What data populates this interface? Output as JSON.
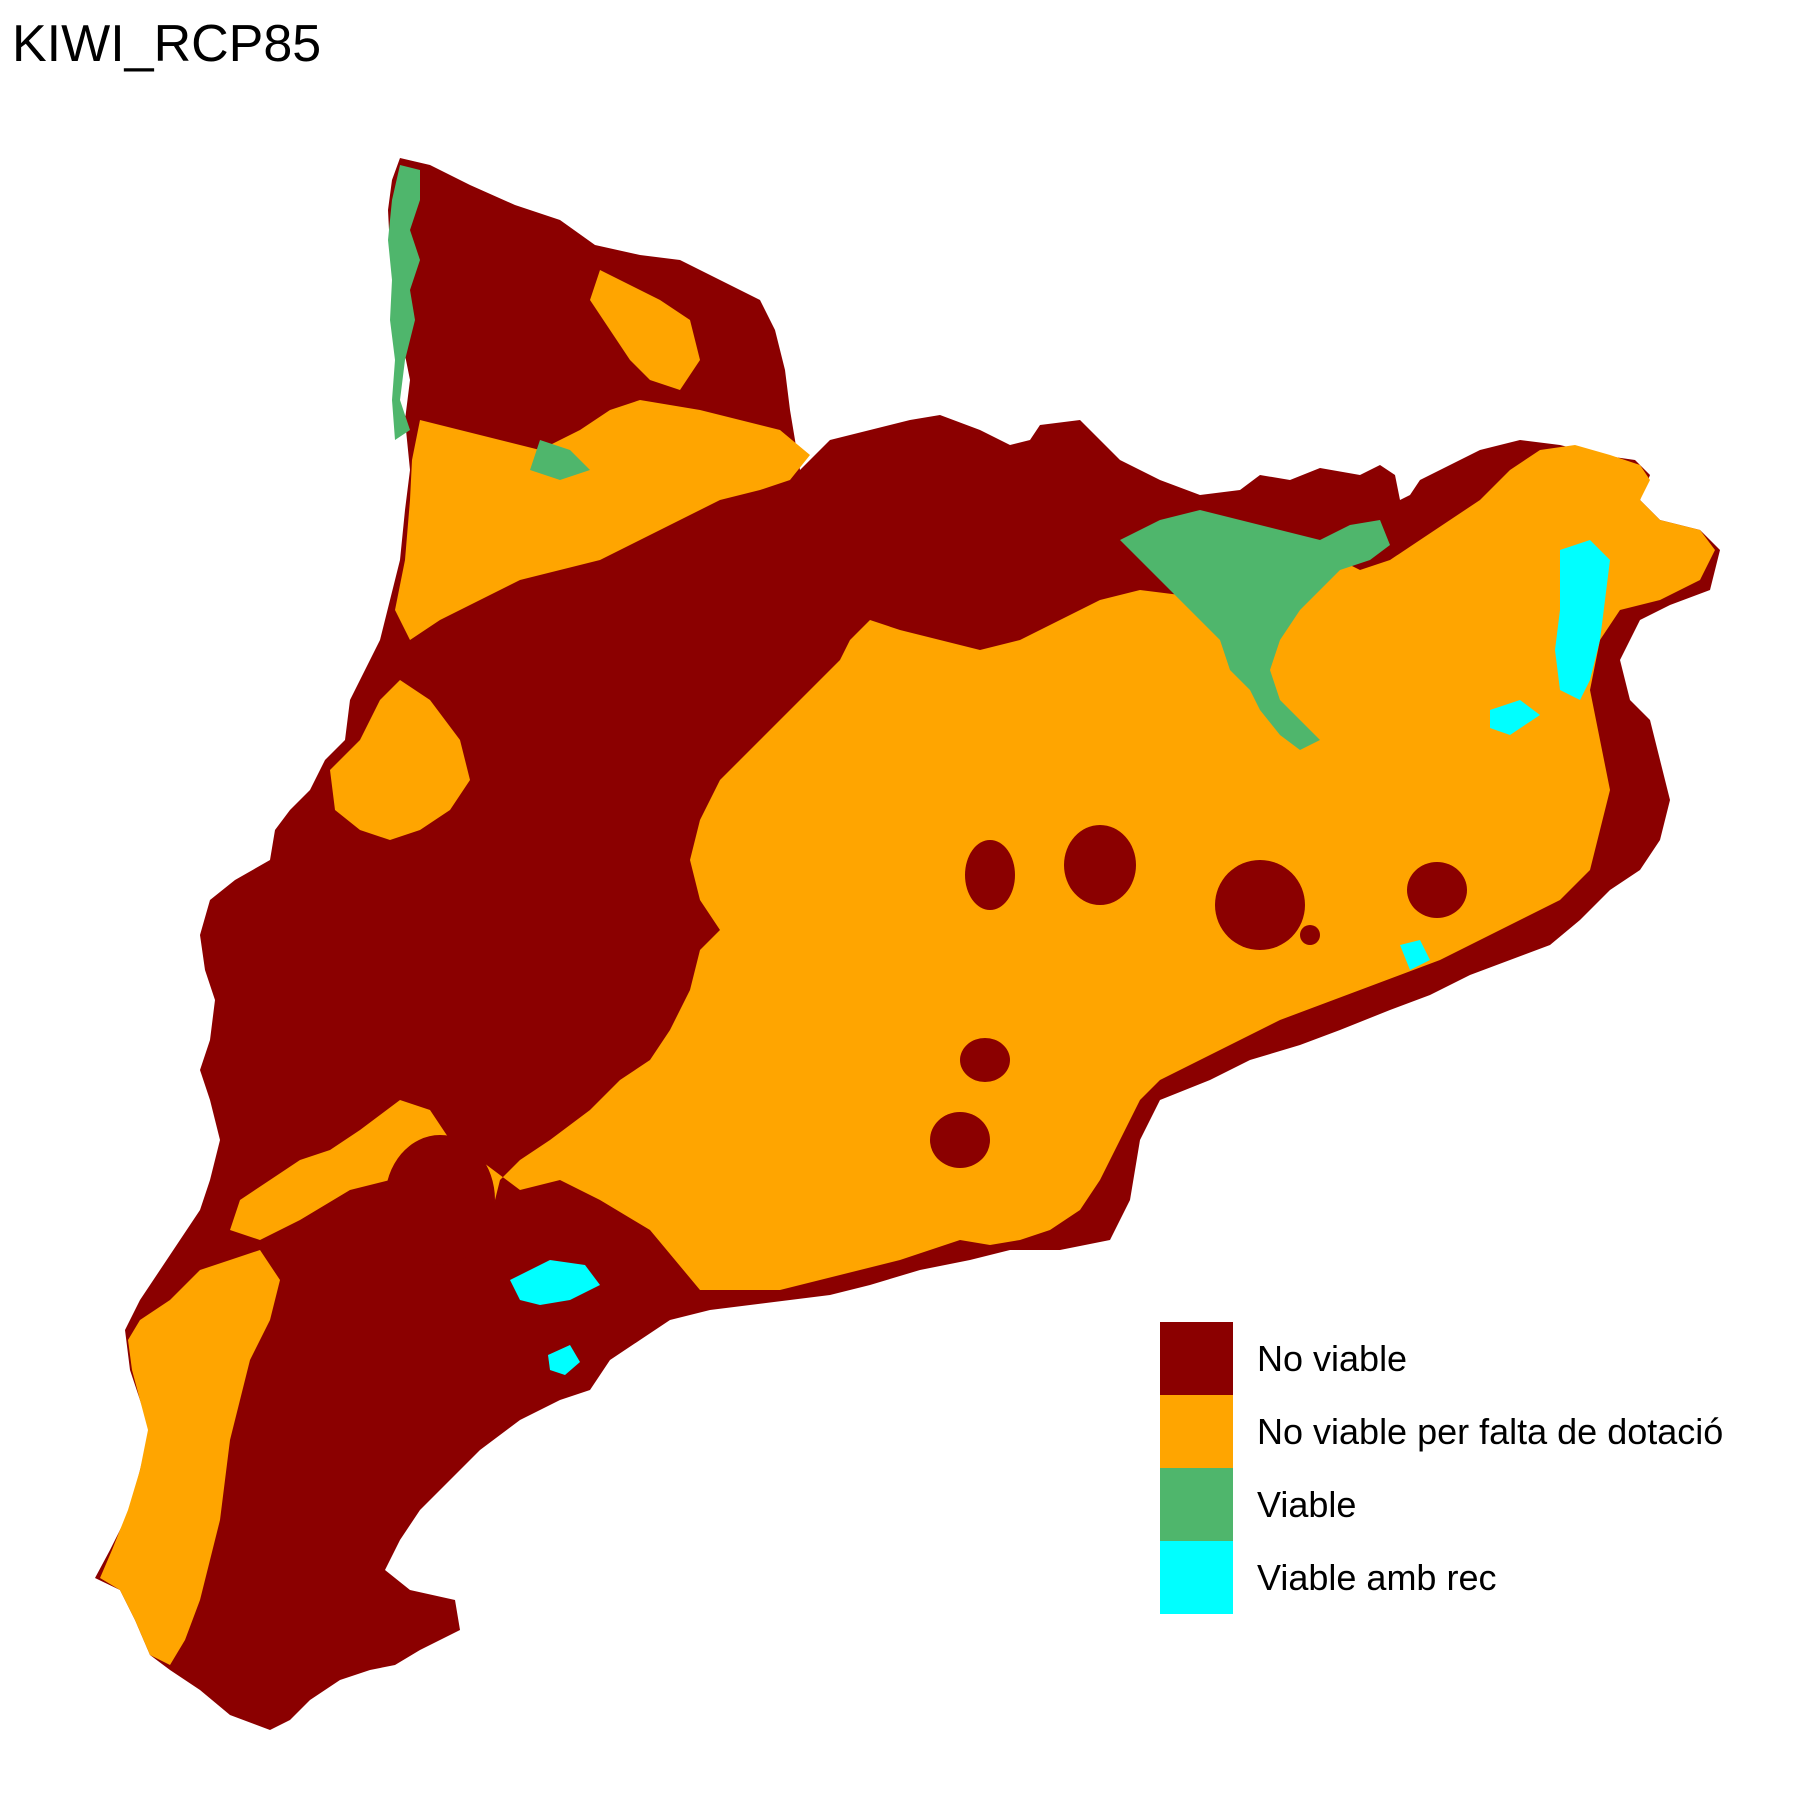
{
  "title": "KIWI_RCP85",
  "colors": {
    "no_viable": "#8B0000",
    "no_viable_dotacio": "#FFA500",
    "viable": "#4FB66C",
    "viable_rec": "#00FFFF"
  },
  "legend": {
    "items": [
      {
        "label": "No viable",
        "color": "#8B0000"
      },
      {
        "label": "No viable per falta de dotació",
        "color": "#FFA500"
      },
      {
        "label": "Viable",
        "color": "#4FB66C"
      },
      {
        "label": "Viable amb rec",
        "color": "#00FFFF"
      }
    ]
  }
}
